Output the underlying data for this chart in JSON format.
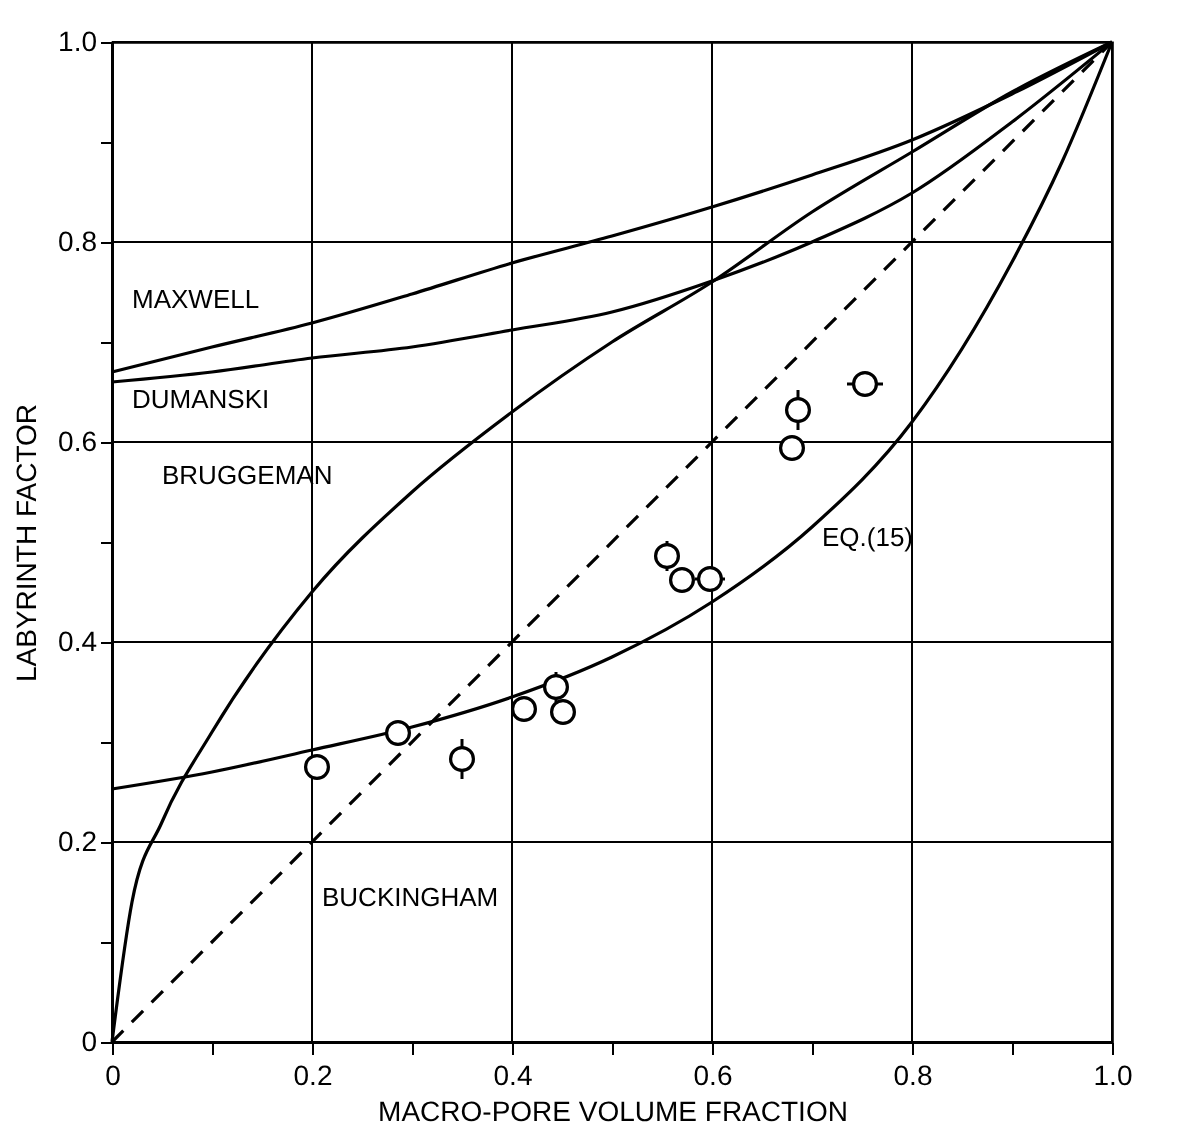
{
  "chart_data": {
    "type": "line",
    "xlabel": "MACRO-PORE VOLUME FRACTION",
    "ylabel": "LABYRINTH FACTOR",
    "xlim": [
      0,
      1
    ],
    "ylim": [
      0,
      1
    ],
    "xticks": [
      0,
      {
        "value": 0.1,
        "label": null
      },
      0.2,
      {
        "value": 0.3,
        "label": null
      },
      0.4,
      {
        "value": 0.5,
        "label": null
      },
      0.6,
      {
        "value": 0.7,
        "label": null
      },
      0.8,
      {
        "value": 0.9,
        "label": null
      },
      {
        "value": 1,
        "label": "1.0"
      }
    ],
    "yticks": [
      0,
      {
        "value": 0.1,
        "label": null
      },
      0.2,
      {
        "value": 0.3,
        "label": null
      },
      0.4,
      {
        "value": 0.5,
        "label": null
      },
      0.6,
      {
        "value": 0.7,
        "label": null
      },
      0.8,
      {
        "value": 0.9,
        "label": null
      },
      {
        "value": 1,
        "label": "1.0"
      }
    ],
    "grid": true,
    "series": [
      {
        "name": "MAXWELL",
        "color": "#000000",
        "x": [
          0,
          0.1,
          0.2,
          0.3,
          0.4,
          0.5,
          0.6,
          0.7,
          0.8,
          0.9,
          1
        ],
        "values": [
          0.67,
          0.695,
          0.719,
          0.748,
          0.779,
          0.806,
          0.835,
          0.867,
          0.902,
          0.948,
          1
        ]
      },
      {
        "name": "DUMANSKI",
        "color": "#000000",
        "x": [
          0,
          0.1,
          0.2,
          0.3,
          0.4,
          0.5,
          0.6,
          0.7,
          0.8,
          0.9,
          1
        ],
        "values": [
          0.66,
          0.67,
          0.684,
          0.695,
          0.712,
          0.73,
          0.761,
          0.8,
          0.849,
          0.92,
          1
        ]
      },
      {
        "name": "BRUGGEMAN",
        "color": "#000000",
        "x": [
          0,
          0.02,
          0.05,
          0.1,
          0.2,
          0.3,
          0.4,
          0.5,
          0.6,
          0.7,
          0.8,
          0.9,
          1
        ],
        "values": [
          0,
          0.14,
          0.22,
          0.31,
          0.45,
          0.55,
          0.63,
          0.7,
          0.76,
          0.83,
          0.89,
          0.95,
          1
        ]
      },
      {
        "name": "BUCKINGHAM",
        "color": "#000000",
        "line_style": "dashed",
        "x": [
          0,
          1
        ],
        "values": [
          0,
          1
        ]
      },
      {
        "name": "EQ.(15)",
        "color": "#000000",
        "x": [
          0,
          0.1,
          0.2,
          0.3,
          0.4,
          0.5,
          0.6,
          0.7,
          0.8,
          0.9,
          0.95,
          1
        ],
        "values": [
          0.253,
          0.27,
          0.292,
          0.315,
          0.345,
          0.385,
          0.44,
          0.515,
          0.62,
          0.78,
          0.88,
          1
        ]
      },
      {
        "type": "scatter",
        "color": "#000000",
        "marker": "circle",
        "x": [
          0.205,
          0.286,
          0.35,
          0.412,
          0.444,
          0.451,
          0.555,
          0.57,
          0.598,
          0.68,
          0.686,
          0.753
        ],
        "values": [
          0.275,
          0.309,
          0.283,
          0.333,
          0.355,
          0.33,
          0.486,
          0.462,
          0.463,
          0.594,
          0.632,
          0.658
        ],
        "errors": [
          null,
          null,
          0.02,
          null,
          0.015,
          null,
          0.015,
          null,
          null,
          null,
          0.02,
          null
        ],
        "xerrors": [
          null,
          null,
          null,
          null,
          null,
          0.012,
          null,
          0.01,
          0.015,
          null,
          null,
          0.018
        ]
      }
    ]
  }
}
